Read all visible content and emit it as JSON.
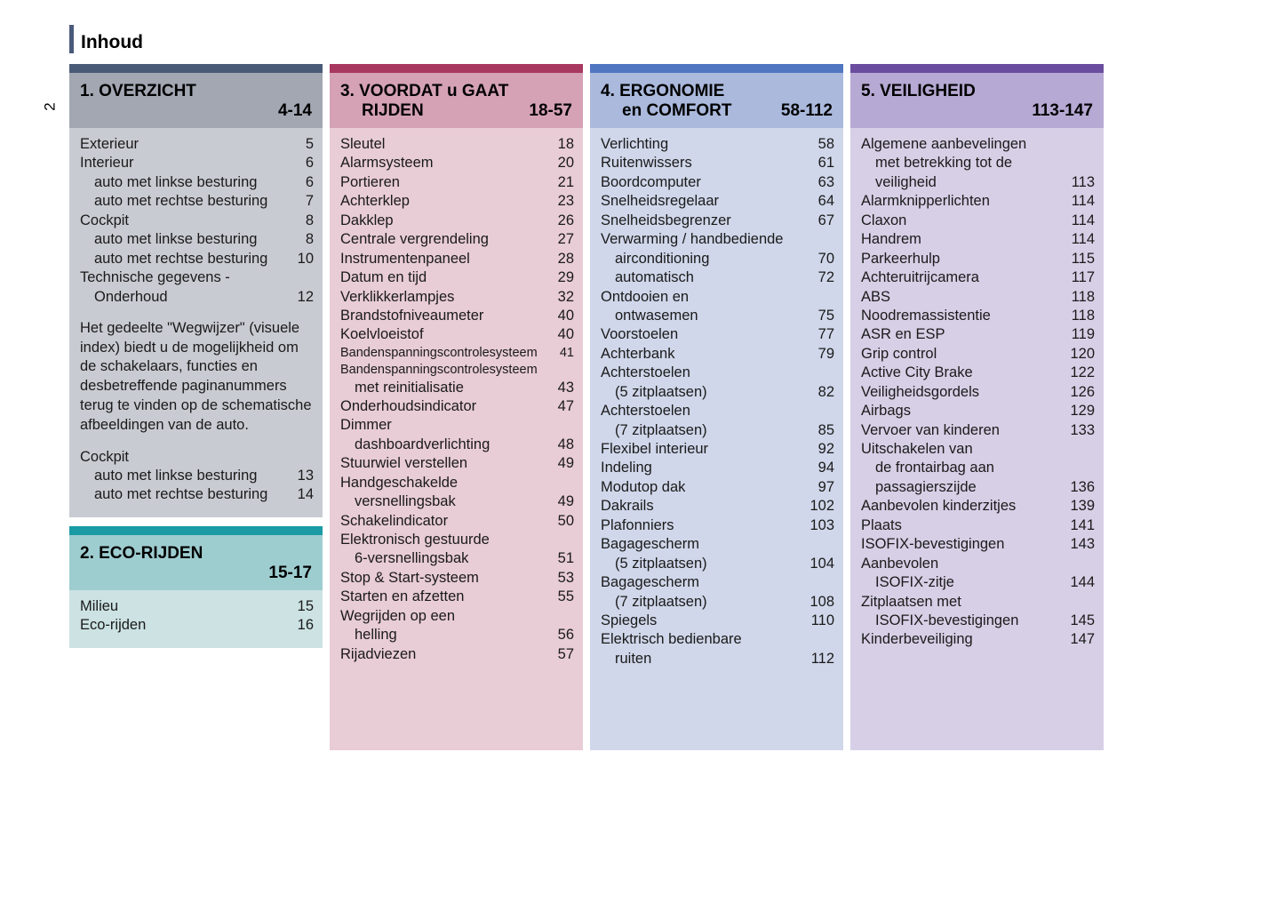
{
  "page_number": "2",
  "title": "Inhoud",
  "colors": {
    "overzicht_bar": "#4a5b78",
    "overzicht_header": "#a2a7b2",
    "overzicht_body": "#c9cbd2",
    "eco_bar": "#1a9ba5",
    "eco_header": "#9ecdd0",
    "eco_body": "#cce2e3",
    "voordat_bar": "#a83860",
    "voordat_header": "#d5a2b5",
    "voordat_body": "#e8ccd6",
    "ergonomie_bar": "#5176c1",
    "ergonomie_header": "#aab9dc",
    "ergonomie_body": "#d0d7ea",
    "veiligheid_bar": "#6a4d9e",
    "veiligheid_header": "#b6a9d3",
    "veiligheid_body": "#d7cfe6"
  },
  "sections": {
    "overzicht": {
      "title": "1. OVERZICHT",
      "range": "4-14",
      "entries": [
        {
          "label": "Exterieur",
          "page": "5"
        },
        {
          "label": "Interieur",
          "page": "6"
        },
        {
          "label": "auto met linkse besturing",
          "page": "6",
          "indent": true
        },
        {
          "label": "auto met rechtse besturing",
          "page": "7",
          "indent": true
        },
        {
          "label": "Cockpit",
          "page": "8"
        },
        {
          "label": "auto met linkse besturing",
          "page": "8",
          "indent": true
        },
        {
          "label": "auto met rechtse besturing",
          "page": "10",
          "indent": true
        },
        {
          "label": "Technische gegevens -",
          "page": ""
        },
        {
          "label": "Onderhoud",
          "page": "12",
          "indent": true
        }
      ],
      "note": "Het gedeelte \"Wegwijzer\" (visuele index) biedt u de mogelijkheid om de schakelaars, functies en desbetreffende paginanummers terug te vinden op de schematische afbeeldingen van de auto.",
      "entries2": [
        {
          "label": "Cockpit",
          "page": ""
        },
        {
          "label": "auto met linkse besturing",
          "page": "13",
          "indent": true
        },
        {
          "label": "auto met rechtse besturing",
          "page": "14",
          "indent": true
        }
      ]
    },
    "eco": {
      "title": "2. ECO-RIJDEN",
      "range": "15-17",
      "entries": [
        {
          "label": "Milieu",
          "page": "15"
        },
        {
          "label": "Eco-rijden",
          "page": "16"
        }
      ]
    },
    "voordat": {
      "title_line1": "3. VOORDAT u GAAT",
      "title_line2": "RIJDEN",
      "range": "18-57",
      "entries": [
        {
          "label": "Sleutel",
          "page": "18"
        },
        {
          "label": "Alarmsysteem",
          "page": "20"
        },
        {
          "label": "Portieren",
          "page": "21"
        },
        {
          "label": "Achterklep",
          "page": "23"
        },
        {
          "label": "Dakklep",
          "page": "26"
        },
        {
          "label": "Centrale vergrendeling",
          "page": "27"
        },
        {
          "label": "Instrumentenpaneel",
          "page": "28"
        },
        {
          "label": "Datum en tijd",
          "page": "29"
        },
        {
          "label": "Verklikkerlampjes",
          "page": "32"
        },
        {
          "label": "Brandstofniveaumeter",
          "page": "40"
        },
        {
          "label": "Koelvloeistof",
          "page": "40"
        },
        {
          "label": "Bandenspanningscontrolesysteem",
          "page": "41",
          "small": true
        },
        {
          "label": "Bandenspanningscontrolesysteem",
          "page": "",
          "small": true
        },
        {
          "label": "met reinitialisatie",
          "page": "43",
          "indent": true
        },
        {
          "label": "Onderhoudsindicator",
          "page": "47"
        },
        {
          "label": "Dimmer",
          "page": ""
        },
        {
          "label": "dashboardverlichting",
          "page": "48",
          "indent": true
        },
        {
          "label": "Stuurwiel verstellen",
          "page": "49"
        },
        {
          "label": "Handgeschakelde",
          "page": ""
        },
        {
          "label": "versnellingsbak",
          "page": "49",
          "indent": true
        },
        {
          "label": "Schakelindicator",
          "page": "50"
        },
        {
          "label": "Elektronisch gestuurde",
          "page": ""
        },
        {
          "label": "6-versnellingsbak",
          "page": "51",
          "indent": true
        },
        {
          "label": "Stop & Start-systeem",
          "page": "53"
        },
        {
          "label": "Starten en afzetten",
          "page": "55"
        },
        {
          "label": "Wegrijden op een",
          "page": ""
        },
        {
          "label": "helling",
          "page": "56",
          "indent": true
        },
        {
          "label": "Rijadviezen",
          "page": "57"
        }
      ]
    },
    "ergonomie": {
      "title_line1": "4. ERGONOMIE",
      "title_line2": "en COMFORT",
      "range": "58-112",
      "entries": [
        {
          "label": "Verlichting",
          "page": "58"
        },
        {
          "label": "Ruitenwissers",
          "page": "61"
        },
        {
          "label": "Boordcomputer",
          "page": "63"
        },
        {
          "label": "Snelheidsregelaar",
          "page": "64"
        },
        {
          "label": "Snelheidsbegrenzer",
          "page": "67"
        },
        {
          "label": "Verwarming / handbediende",
          "page": ""
        },
        {
          "label": "airconditioning",
          "page": "70",
          "indent": true
        },
        {
          "label": "automatisch",
          "page": "72",
          "indent": true
        },
        {
          "label": "Ontdooien en",
          "page": ""
        },
        {
          "label": "ontwasemen",
          "page": "75",
          "indent": true
        },
        {
          "label": "Voorstoelen",
          "page": "77"
        },
        {
          "label": "Achterbank",
          "page": "79"
        },
        {
          "label": "Achterstoelen",
          "page": ""
        },
        {
          "label": "(5 zitplaatsen)",
          "page": "82",
          "indent": true
        },
        {
          "label": "Achterstoelen",
          "page": ""
        },
        {
          "label": "(7 zitplaatsen)",
          "page": "85",
          "indent": true
        },
        {
          "label": "Flexibel interieur",
          "page": "92"
        },
        {
          "label": "Indeling",
          "page": "94"
        },
        {
          "label": "Modutop dak",
          "page": "97"
        },
        {
          "label": "Dakrails",
          "page": "102"
        },
        {
          "label": "Plafonniers",
          "page": "103"
        },
        {
          "label": "Bagagescherm",
          "page": ""
        },
        {
          "label": "(5 zitplaatsen)",
          "page": "104",
          "indent": true
        },
        {
          "label": "Bagagescherm",
          "page": ""
        },
        {
          "label": "(7 zitplaatsen)",
          "page": "108",
          "indent": true
        },
        {
          "label": "Spiegels",
          "page": "110"
        },
        {
          "label": "Elektrisch bedienbare",
          "page": ""
        },
        {
          "label": "ruiten",
          "page": "112",
          "indent": true
        }
      ]
    },
    "veiligheid": {
      "title": "5. VEILIGHEID",
      "range": "113-147",
      "entries": [
        {
          "label": "Algemene aanbevelingen",
          "page": ""
        },
        {
          "label": "met betrekking tot de",
          "page": "",
          "indent": true
        },
        {
          "label": "veiligheid",
          "page": "113",
          "indent": true
        },
        {
          "label": "Alarmknipperlichten",
          "page": "114"
        },
        {
          "label": "Claxon",
          "page": "114"
        },
        {
          "label": "Handrem",
          "page": "114"
        },
        {
          "label": "Parkeerhulp",
          "page": "115"
        },
        {
          "label": "Achteruitrijcamera",
          "page": "117"
        },
        {
          "label": "ABS",
          "page": "118"
        },
        {
          "label": "Noodremassistentie",
          "page": "118"
        },
        {
          "label": "ASR en ESP",
          "page": "119"
        },
        {
          "label": "Grip control",
          "page": "120"
        },
        {
          "label": "Active City Brake",
          "page": "122"
        },
        {
          "label": "Veiligheidsgordels",
          "page": "126"
        },
        {
          "label": "Airbags",
          "page": "129"
        },
        {
          "label": "Vervoer van kinderen",
          "page": "133"
        },
        {
          "label": "Uitschakelen van",
          "page": ""
        },
        {
          "label": "de frontairbag aan",
          "page": "",
          "indent": true
        },
        {
          "label": "passagierszijde",
          "page": "136",
          "indent": true
        },
        {
          "label": "Aanbevolen kinderzitjes",
          "page": "139"
        },
        {
          "label": "Plaats",
          "page": "141"
        },
        {
          "label": "ISOFIX-bevestigingen",
          "page": "143"
        },
        {
          "label": "Aanbevolen",
          "page": ""
        },
        {
          "label": "ISOFIX-zitje",
          "page": "144",
          "indent": true
        },
        {
          "label": "Zitplaatsen met",
          "page": ""
        },
        {
          "label": "ISOFIX-bevestigingen",
          "page": "145",
          "indent": true
        },
        {
          "label": "Kinderbeveiliging",
          "page": "147"
        }
      ]
    }
  }
}
